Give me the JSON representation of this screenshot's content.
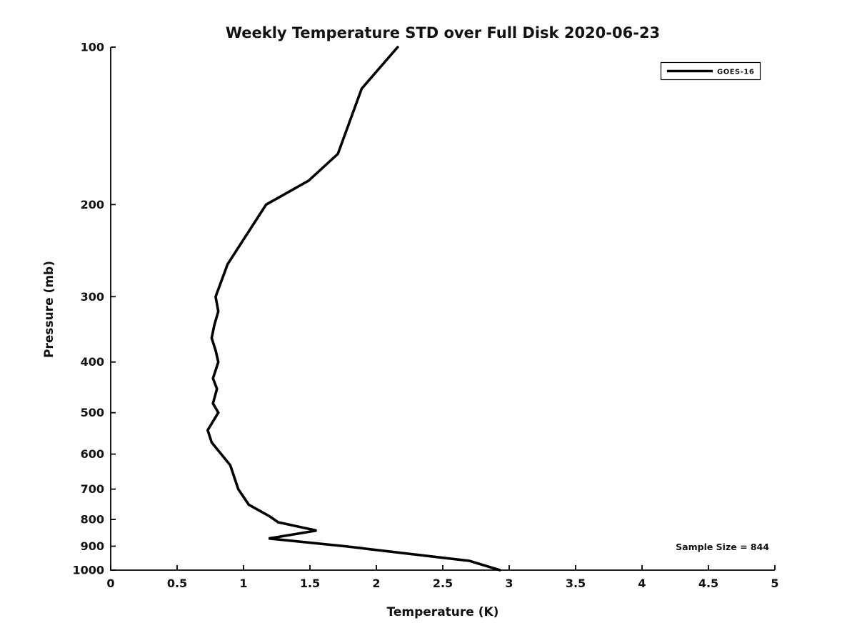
{
  "figure": {
    "background_color": "#ffffff",
    "axis_color": "#000000",
    "text_color": "#111111"
  },
  "chart_data": {
    "type": "line",
    "title": "Weekly Temperature STD over Full Disk 2020-06-23",
    "xlabel": "Temperature (K)",
    "ylabel": "Pressure (mb)",
    "xlim": [
      0,
      5
    ],
    "x_ticks": [
      0,
      0.5,
      1,
      1.5,
      2,
      2.5,
      3,
      3.5,
      4,
      4.5,
      5
    ],
    "x_tick_labels": [
      "0",
      "0.5",
      "1",
      "1.5",
      "2",
      "2.5",
      "3",
      "3.5",
      "4",
      "4.5",
      "5"
    ],
    "y_scale": "log",
    "y_inverted": true,
    "ylim": [
      100,
      1000
    ],
    "y_ticks": [
      100,
      200,
      300,
      400,
      500,
      600,
      700,
      800,
      900,
      1000
    ],
    "y_tick_labels": [
      "100",
      "200",
      "300",
      "400",
      "500",
      "600",
      "700",
      "800",
      "900",
      "1000"
    ],
    "grid": false,
    "legend": {
      "position": "top-right",
      "entries": [
        {
          "label": "GOES-16",
          "color": "#000000",
          "line_width": 3.6
        }
      ]
    },
    "annotation": "Sample Size = 844",
    "series": [
      {
        "name": "GOES-16",
        "color": "#000000",
        "line_width": 3.6,
        "pressure_mb": [
          100,
          120,
          160,
          180,
          200,
          260,
          300,
          320,
          340,
          360,
          380,
          400,
          430,
          450,
          480,
          500,
          540,
          570,
          630,
          700,
          750,
          790,
          810,
          840,
          870,
          900,
          960,
          1000
        ],
        "std_k": [
          2.16,
          1.89,
          1.71,
          1.49,
          1.17,
          0.88,
          0.79,
          0.81,
          0.78,
          0.76,
          0.79,
          0.81,
          0.77,
          0.8,
          0.77,
          0.81,
          0.73,
          0.76,
          0.9,
          0.96,
          1.04,
          1.2,
          1.26,
          1.55,
          1.19,
          1.76,
          2.7,
          2.93
        ]
      }
    ]
  }
}
